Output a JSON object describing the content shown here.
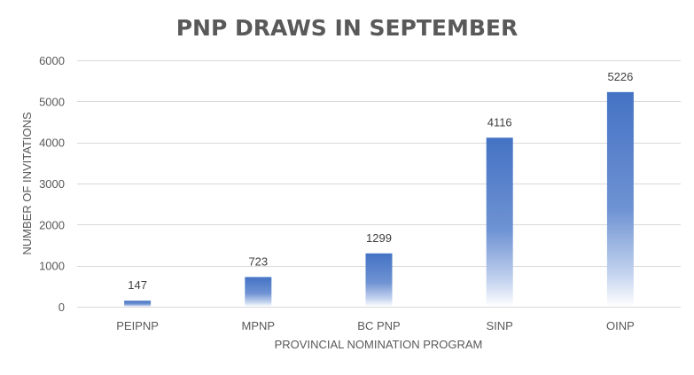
{
  "chart_data": {
    "type": "bar",
    "title": "PNP DRAWS IN SEPTEMBER",
    "xlabel": "PROVINCIAL NOMINATION PROGRAM",
    "ylabel": "NUMBER OF INVITATIONS",
    "categories": [
      "PEIPNP",
      "MPNP",
      "BC PNP",
      "SINP",
      "OINP"
    ],
    "values": [
      147,
      723,
      1299,
      4116,
      5226
    ],
    "data_labels": [
      "147",
      "723",
      "1299",
      "4116",
      "5226"
    ],
    "ylim": [
      0,
      6000
    ],
    "yticks": [
      0,
      1000,
      2000,
      3000,
      4000,
      5000,
      6000
    ],
    "ytick_labels": [
      "0",
      "1000",
      "2000",
      "3000",
      "4000",
      "5000",
      "6000"
    ],
    "grid": true,
    "legend": "none",
    "bar_color": "#4472c4",
    "bar_fill": "gradient fading to white at bottom"
  }
}
